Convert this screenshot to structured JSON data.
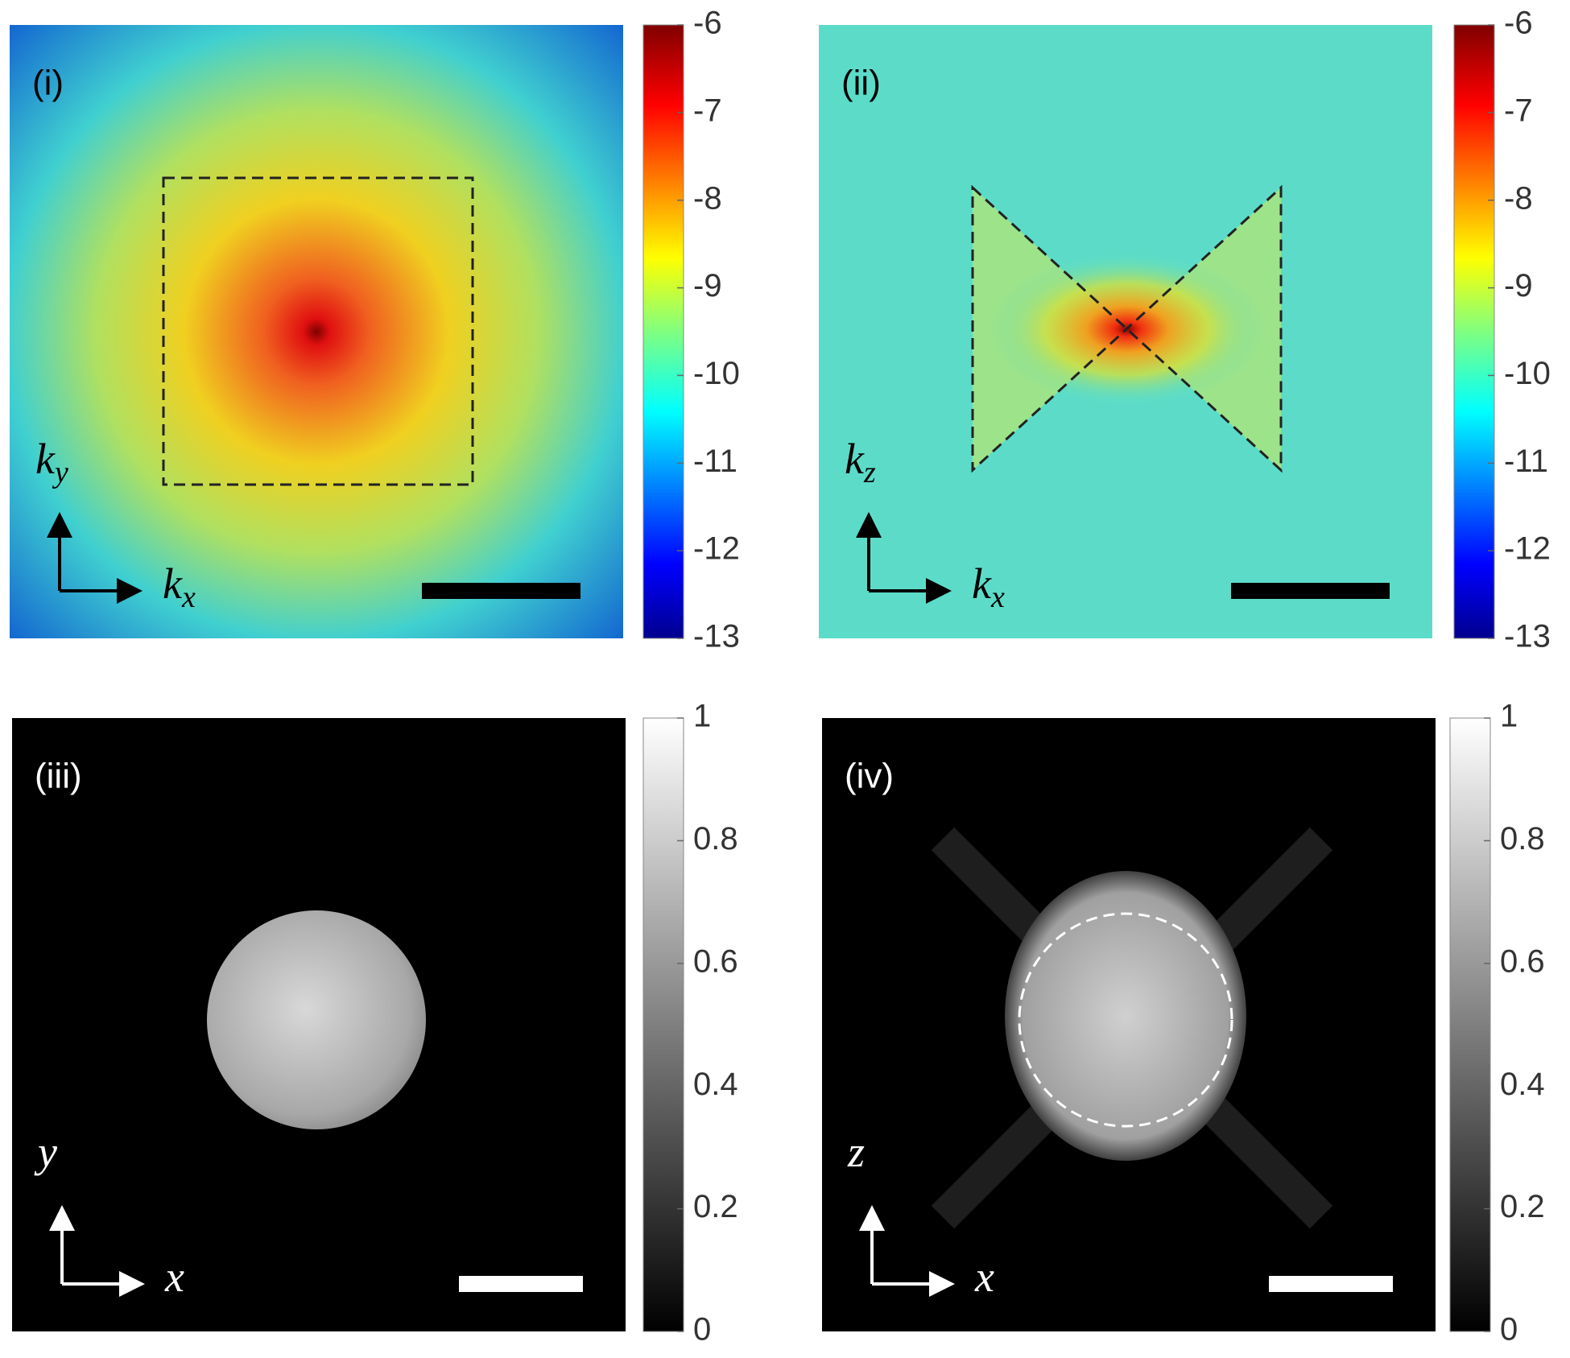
{
  "chart_data": [
    {
      "type": "image",
      "panel_label": "(i)",
      "colormap": "jet",
      "clim": [
        -13,
        -6
      ],
      "cticks": [
        -13,
        -12,
        -11,
        -10,
        -9,
        -8,
        -7,
        -6
      ],
      "x_axis_label": {
        "symbol": "k",
        "subscript": "x"
      },
      "y_axis_label": {
        "symbol": "k",
        "subscript": "y"
      }
    },
    {
      "type": "image",
      "panel_label": "(ii)",
      "colormap": "jet",
      "clim": [
        -13,
        -6
      ],
      "cticks": [
        -13,
        -12,
        -11,
        -10,
        -9,
        -8,
        -7,
        -6
      ],
      "x_axis_label": {
        "symbol": "k",
        "subscript": "x"
      },
      "y_axis_label": {
        "symbol": "k",
        "subscript": "z"
      }
    },
    {
      "type": "image",
      "panel_label": "(iii)",
      "colormap": "gray",
      "clim": [
        0,
        1
      ],
      "cticks": [
        0,
        0.2,
        0.4,
        0.6,
        0.8,
        1
      ],
      "x_axis_label": {
        "symbol": "x"
      },
      "y_axis_label": {
        "symbol": "y"
      }
    },
    {
      "type": "image",
      "panel_label": "(iv)",
      "colormap": "gray",
      "clim": [
        0,
        1
      ],
      "cticks": [
        0,
        0.2,
        0.4,
        0.6,
        0.8,
        1
      ],
      "x_axis_label": {
        "symbol": "x"
      },
      "y_axis_label": {
        "symbol": "z"
      }
    }
  ]
}
